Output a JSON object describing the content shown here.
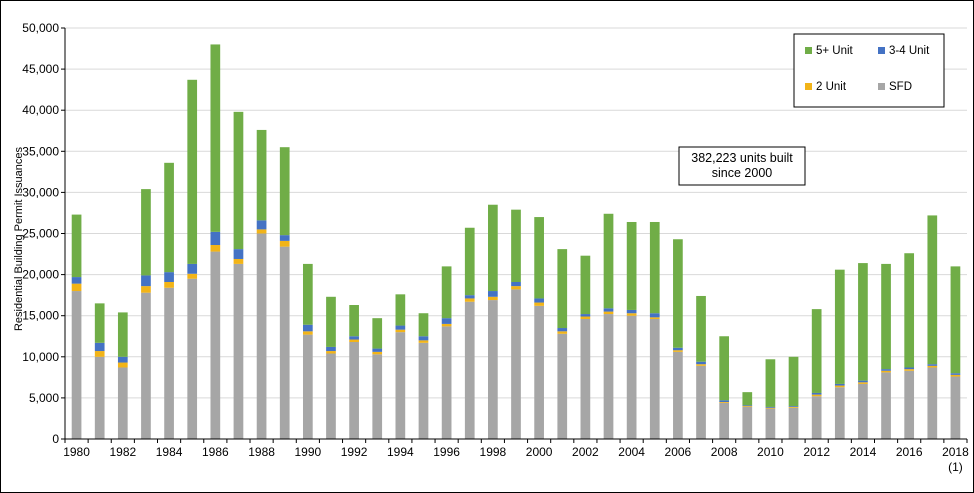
{
  "chart_data": {
    "type": "bar",
    "stacked": true,
    "ylabel": "Residential Building Permit Issuances",
    "ylim": [
      0,
      50000
    ],
    "yticks": [
      "0",
      "5,000",
      "10,000",
      "15,000",
      "20,000",
      "25,000",
      "30,000",
      "35,000",
      "40,000",
      "45,000",
      "50,000"
    ],
    "xtick_labels": [
      "1980",
      "1982",
      "1984",
      "1986",
      "1988",
      "1990",
      "1992",
      "1994",
      "1996",
      "1998",
      "2000",
      "2002",
      "2004",
      "2006",
      "2008",
      "2010",
      "2012",
      "2014",
      "2016",
      "2018"
    ],
    "xtick_footnote": "(1)",
    "grid": true,
    "legend_position": "top-right",
    "annotation": [
      "382,223 units built",
      "since 2000"
    ],
    "categories": [
      "1980",
      "1981",
      "1982",
      "1983",
      "1984",
      "1985",
      "1986",
      "1987",
      "1988",
      "1989",
      "1990",
      "1991",
      "1992",
      "1993",
      "1994",
      "1995",
      "1996",
      "1997",
      "1998",
      "1999",
      "2000",
      "2001",
      "2002",
      "2003",
      "2004",
      "2005",
      "2006",
      "2007",
      "2008",
      "2009",
      "2010",
      "2011",
      "2012",
      "2013",
      "2014",
      "2015",
      "2016",
      "2017",
      "2018"
    ],
    "series": [
      {
        "name": "SFD",
        "color": "#a6a6a6",
        "values": [
          18000,
          10000,
          8700,
          17800,
          18400,
          19500,
          22800,
          21300,
          25000,
          23400,
          12700,
          10400,
          11800,
          10300,
          13000,
          11700,
          13700,
          16700,
          16900,
          18200,
          16200,
          12800,
          14600,
          15200,
          15000,
          14600,
          10600,
          8900,
          4400,
          3900,
          3700,
          3800,
          5200,
          6300,
          6700,
          8100,
          8300,
          8700,
          7600
        ]
      },
      {
        "name": "2 Unit",
        "color": "#f2b418",
        "values": [
          900,
          700,
          600,
          800,
          700,
          600,
          800,
          600,
          500,
          700,
          400,
          300,
          300,
          300,
          300,
          300,
          300,
          400,
          400,
          400,
          400,
          300,
          300,
          300,
          300,
          200,
          200,
          200,
          100,
          100,
          100,
          100,
          200,
          200,
          200,
          200,
          200,
          200,
          200
        ]
      },
      {
        "name": "3-4 Unit",
        "color": "#4472c4",
        "values": [
          800,
          1000,
          700,
          1300,
          1200,
          1200,
          1600,
          1200,
          1100,
          700,
          800,
          500,
          400,
          400,
          500,
          500,
          700,
          400,
          700,
          500,
          500,
          400,
          300,
          400,
          400,
          500,
          300,
          300,
          200,
          100,
          100,
          100,
          200,
          200,
          200,
          200,
          200,
          200,
          200
        ]
      },
      {
        "name": "5+ Unit",
        "color": "#70ad47",
        "values": [
          7600,
          4800,
          5400,
          10500,
          13300,
          22400,
          22800,
          16700,
          11000,
          10700,
          7400,
          6100,
          3800,
          3700,
          3800,
          2800,
          6300,
          8200,
          10500,
          8800,
          9900,
          9600,
          7100,
          11500,
          10700,
          11100,
          13200,
          8000,
          7800,
          1600,
          5800,
          6000,
          10200,
          13900,
          14300,
          12800,
          13900,
          18100,
          13000
        ]
      }
    ]
  }
}
